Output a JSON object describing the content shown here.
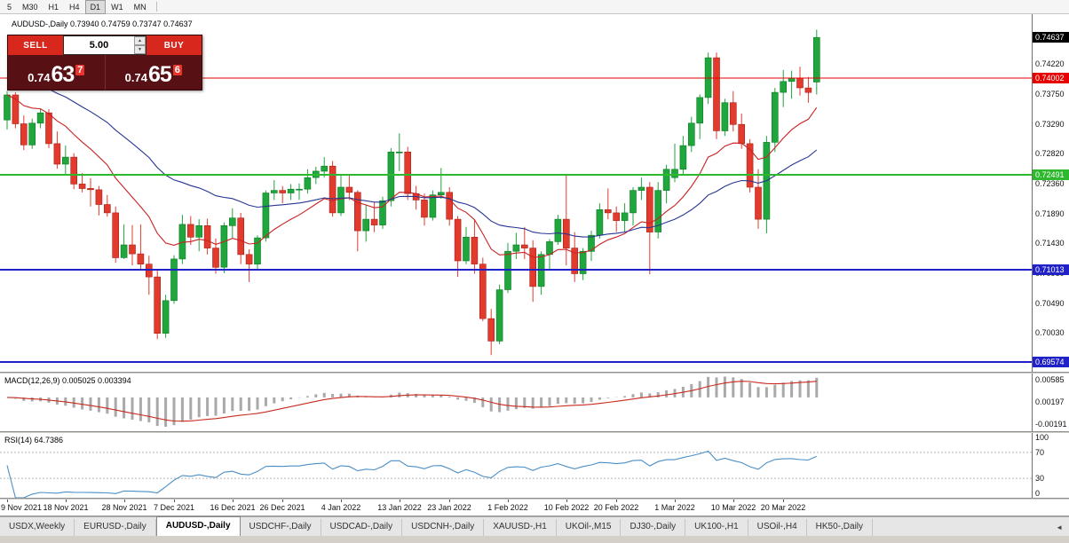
{
  "toolbar": {
    "periods": [
      {
        "label": "5",
        "active": false
      },
      {
        "label": "M30",
        "active": false
      },
      {
        "label": "H1",
        "active": false
      },
      {
        "label": "H4",
        "active": false
      },
      {
        "label": "D1",
        "active": true
      },
      {
        "label": "W1",
        "active": false
      },
      {
        "label": "MN",
        "active": false
      }
    ]
  },
  "chart_header": {
    "title": "AUDUSD-,Daily 0.73940 0.74759 0.73747 0.74637"
  },
  "trade_panel": {
    "sell_label": "SELL",
    "buy_label": "BUY",
    "volume": "5.00",
    "volume_up_icon": "▲",
    "volume_down_icon": "▼",
    "sell_price": {
      "prefix": "0.74",
      "big": "63",
      "sup": "7"
    },
    "buy_price": {
      "prefix": "0.74",
      "big": "65",
      "sup": "6"
    }
  },
  "indicators": {
    "macd": {
      "label": "MACD(12,26,9) 0.005025 0.003394",
      "axis_labels": [
        "0.00585",
        "0.00197",
        "-0.00191"
      ],
      "hist_color": "#a9a9a9",
      "signal_color": "#c92a1f"
    },
    "rsi": {
      "label": "RSI(14) 64.7386",
      "axis_labels": [
        "100",
        "70",
        "30",
        "0"
      ],
      "levels": [
        70,
        30
      ],
      "line_color": "#4a8fc7"
    }
  },
  "chart_data": {
    "type": "candlestick",
    "symbol": "AUDUSD-",
    "timeframe": "Daily",
    "last_bar": {
      "open": 0.7394,
      "high": 0.74759,
      "low": 0.73747,
      "close": 0.74637
    },
    "current_price": 0.74637,
    "ylim": [
      0.6942,
      0.75
    ],
    "y_ticks": [
      0.7422,
      0.7375,
      0.7329,
      0.7282,
      0.7236,
      0.7189,
      0.7143,
      0.7096,
      0.7049,
      0.7003
    ],
    "hlines": [
      {
        "value": 0.74002,
        "color": "#e60000",
        "width": 1
      },
      {
        "value": 0.72491,
        "color": "#2eb82e",
        "width": 2
      },
      {
        "value": 0.71013,
        "color": "#2121c8",
        "width": 2
      },
      {
        "value": 0.69574,
        "color": "#2121c8",
        "width": 2
      }
    ],
    "up_color": "#1fa63c",
    "up_border": "#0d7a24",
    "down_color": "#e23b2e",
    "down_border": "#a81f14",
    "ma_fast_color": "#c92222",
    "ma_slow_color": "#283593",
    "x_labels": [
      {
        "label": "9 Nov 2021",
        "index": 0
      },
      {
        "label": "18 Nov 2021",
        "index": 7
      },
      {
        "label": "28 Nov 2021",
        "index": 14
      },
      {
        "label": "7 Dec 2021",
        "index": 20
      },
      {
        "label": "16 Dec 2021",
        "index": 27
      },
      {
        "label": "26 Dec 2021",
        "index": 33
      },
      {
        "label": "4 Jan 2022",
        "index": 40
      },
      {
        "label": "13 Jan 2022",
        "index": 47
      },
      {
        "label": "23 Jan 2022",
        "index": 53
      },
      {
        "label": "1 Feb 2022",
        "index": 60
      },
      {
        "label": "10 Feb 2022",
        "index": 67
      },
      {
        "label": "20 Feb 2022",
        "index": 73
      },
      {
        "label": "1 Mar 2022",
        "index": 80
      },
      {
        "label": "10 Mar 2022",
        "index": 87
      },
      {
        "label": "20 Mar 2022",
        "index": 93
      }
    ],
    "candles": [
      [
        0.7335,
        0.738,
        0.732,
        0.7374
      ],
      [
        0.7374,
        0.7378,
        0.7322,
        0.7329
      ],
      [
        0.7329,
        0.7342,
        0.7288,
        0.7296
      ],
      [
        0.7296,
        0.7337,
        0.729,
        0.733
      ],
      [
        0.733,
        0.7352,
        0.7322,
        0.7346
      ],
      [
        0.7346,
        0.7352,
        0.7291,
        0.7298
      ],
      [
        0.7298,
        0.7317,
        0.7259,
        0.7266
      ],
      [
        0.7266,
        0.7295,
        0.725,
        0.7277
      ],
      [
        0.7277,
        0.7283,
        0.7227,
        0.7235
      ],
      [
        0.7235,
        0.7252,
        0.7222,
        0.7228
      ],
      [
        0.7228,
        0.7244,
        0.72,
        0.7226
      ],
      [
        0.7226,
        0.7232,
        0.7186,
        0.7203
      ],
      [
        0.7203,
        0.7218,
        0.7184,
        0.719
      ],
      [
        0.719,
        0.72,
        0.7112,
        0.712
      ],
      [
        0.712,
        0.7172,
        0.7118,
        0.714
      ],
      [
        0.714,
        0.7171,
        0.7108,
        0.7126
      ],
      [
        0.7126,
        0.7172,
        0.71,
        0.711
      ],
      [
        0.711,
        0.7123,
        0.7062,
        0.709
      ],
      [
        0.709,
        0.7102,
        0.6993,
        0.7002
      ],
      [
        0.7002,
        0.7062,
        0.6995,
        0.7053
      ],
      [
        0.7053,
        0.7124,
        0.7048,
        0.7118
      ],
      [
        0.7118,
        0.7187,
        0.711,
        0.7172
      ],
      [
        0.7172,
        0.7185,
        0.714,
        0.7152
      ],
      [
        0.7152,
        0.718,
        0.713,
        0.717
      ],
      [
        0.717,
        0.7181,
        0.7125,
        0.7135
      ],
      [
        0.7135,
        0.715,
        0.7095,
        0.7105
      ],
      [
        0.7105,
        0.7175,
        0.7096,
        0.717
      ],
      [
        0.717,
        0.7197,
        0.715,
        0.7182
      ],
      [
        0.7182,
        0.719,
        0.711,
        0.7125
      ],
      [
        0.7125,
        0.7133,
        0.7082,
        0.711
      ],
      [
        0.711,
        0.7155,
        0.71,
        0.7151
      ],
      [
        0.7151,
        0.7225,
        0.7145,
        0.7221
      ],
      [
        0.7221,
        0.7241,
        0.721,
        0.7225
      ],
      [
        0.7225,
        0.7232,
        0.7205,
        0.7221
      ],
      [
        0.7221,
        0.7235,
        0.721,
        0.7227
      ],
      [
        0.7227,
        0.7236,
        0.721,
        0.7227
      ],
      [
        0.7227,
        0.7258,
        0.722,
        0.7245
      ],
      [
        0.7245,
        0.7262,
        0.7235,
        0.7255
      ],
      [
        0.7255,
        0.7277,
        0.7245,
        0.7263
      ],
      [
        0.7263,
        0.7271,
        0.7184,
        0.719
      ],
      [
        0.719,
        0.725,
        0.7185,
        0.723
      ],
      [
        0.723,
        0.7248,
        0.721,
        0.7222
      ],
      [
        0.7222,
        0.7225,
        0.713,
        0.7162
      ],
      [
        0.7162,
        0.7202,
        0.7145,
        0.718
      ],
      [
        0.718,
        0.7206,
        0.716,
        0.7171
      ],
      [
        0.7171,
        0.7215,
        0.7165,
        0.7209
      ],
      [
        0.7209,
        0.7291,
        0.72,
        0.7285
      ],
      [
        0.7285,
        0.7314,
        0.7255,
        0.7285
      ],
      [
        0.7285,
        0.7293,
        0.721,
        0.722
      ],
      [
        0.722,
        0.7232,
        0.7195,
        0.721
      ],
      [
        0.721,
        0.722,
        0.717,
        0.7183
      ],
      [
        0.7183,
        0.7225,
        0.7178,
        0.7218
      ],
      [
        0.7218,
        0.726,
        0.7212,
        0.7222
      ],
      [
        0.7222,
        0.723,
        0.717,
        0.718
      ],
      [
        0.718,
        0.7185,
        0.709,
        0.7115
      ],
      [
        0.7115,
        0.7168,
        0.711,
        0.7152
      ],
      [
        0.7152,
        0.718,
        0.7095,
        0.711
      ],
      [
        0.711,
        0.712,
        0.7021,
        0.7025
      ],
      [
        0.7025,
        0.704,
        0.6968,
        0.699
      ],
      [
        0.699,
        0.7078,
        0.6985,
        0.707
      ],
      [
        0.707,
        0.7143,
        0.7065,
        0.713
      ],
      [
        0.713,
        0.7159,
        0.7118,
        0.714
      ],
      [
        0.714,
        0.7168,
        0.7118,
        0.7135
      ],
      [
        0.7135,
        0.7147,
        0.7051,
        0.7075
      ],
      [
        0.7075,
        0.713,
        0.7062,
        0.7125
      ],
      [
        0.7125,
        0.7149,
        0.71,
        0.7145
      ],
      [
        0.7145,
        0.7187,
        0.714,
        0.718
      ],
      [
        0.718,
        0.7248,
        0.7108,
        0.7135
      ],
      [
        0.7135,
        0.716,
        0.7082,
        0.7095
      ],
      [
        0.7095,
        0.7135,
        0.7085,
        0.713
      ],
      [
        0.713,
        0.7162,
        0.7115,
        0.7155
      ],
      [
        0.7155,
        0.7205,
        0.715,
        0.7195
      ],
      [
        0.7195,
        0.7228,
        0.718,
        0.719
      ],
      [
        0.719,
        0.72,
        0.716,
        0.7178
      ],
      [
        0.7178,
        0.7205,
        0.716,
        0.719
      ],
      [
        0.719,
        0.723,
        0.717,
        0.7225
      ],
      [
        0.7225,
        0.7245,
        0.721,
        0.723
      ],
      [
        0.723,
        0.7238,
        0.7094,
        0.716
      ],
      [
        0.716,
        0.7238,
        0.715,
        0.7225
      ],
      [
        0.7225,
        0.7265,
        0.7205,
        0.7258
      ],
      [
        0.7245,
        0.7298,
        0.7238,
        0.7258
      ],
      [
        0.7258,
        0.731,
        0.725,
        0.7295
      ],
      [
        0.7295,
        0.734,
        0.7285,
        0.733
      ],
      [
        0.733,
        0.7375,
        0.7305,
        0.737
      ],
      [
        0.737,
        0.744,
        0.736,
        0.7432
      ],
      [
        0.7432,
        0.744,
        0.7305,
        0.7318
      ],
      [
        0.7318,
        0.7368,
        0.731,
        0.7362
      ],
      [
        0.7362,
        0.738,
        0.7317,
        0.7328
      ],
      [
        0.7328,
        0.7345,
        0.729,
        0.7298
      ],
      [
        0.7298,
        0.7305,
        0.7222,
        0.723
      ],
      [
        0.723,
        0.7258,
        0.7165,
        0.718
      ],
      [
        0.718,
        0.731,
        0.7158,
        0.73
      ],
      [
        0.73,
        0.7385,
        0.7285,
        0.7378
      ],
      [
        0.7378,
        0.7413,
        0.7355,
        0.7395
      ],
      [
        0.7395,
        0.7412,
        0.7368,
        0.74
      ],
      [
        0.74,
        0.7418,
        0.7373,
        0.7385
      ],
      [
        0.7385,
        0.7402,
        0.7362,
        0.7378
      ],
      [
        0.7394,
        0.74759,
        0.73747,
        0.74637
      ]
    ]
  },
  "tabbar": {
    "scroll_left_icon": "◄",
    "tabs": [
      {
        "label": "USDX,Weekly",
        "active": false
      },
      {
        "label": "EURUSD-,Daily",
        "active": false
      },
      {
        "label": "AUDUSD-,Daily",
        "active": true
      },
      {
        "label": "USDCHF-,Daily",
        "active": false
      },
      {
        "label": "USDCAD-,Daily",
        "active": false
      },
      {
        "label": "USDCNH-,Daily",
        "active": false
      },
      {
        "label": "XAUUSD-,H1",
        "active": false
      },
      {
        "label": "UKOil-,M15",
        "active": false
      },
      {
        "label": "DJ30-,Daily",
        "active": false
      },
      {
        "label": "UK100-,H1",
        "active": false
      },
      {
        "label": "USOil-,H4",
        "active": false
      },
      {
        "label": "HK50-,Daily",
        "active": false
      }
    ]
  }
}
